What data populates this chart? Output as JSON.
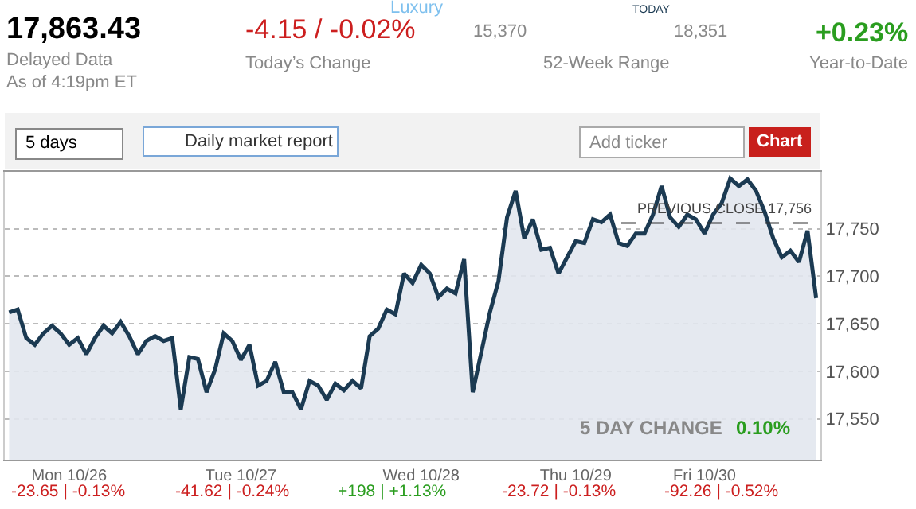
{
  "chart_data": {
    "type": "area",
    "series": [
      {
        "color": "#1b3a52",
        "values": [
          17662,
          17665,
          17635,
          17628,
          17640,
          17648,
          17640,
          17628,
          17635,
          17618,
          17635,
          17648,
          17640,
          17652,
          17637,
          17618,
          17632,
          17637,
          17632,
          17635,
          17560,
          17615,
          17613,
          17578,
          17602,
          17640,
          17632,
          17612,
          17628,
          17585,
          17590,
          17610,
          17578,
          17578,
          17560,
          17590,
          17585,
          17570,
          17587,
          17580,
          17590,
          17582,
          17637,
          17645,
          17665,
          17660,
          17703,
          17693,
          17712,
          17703,
          17678,
          17687,
          17682,
          17718,
          17578,
          17620,
          17662,
          17695,
          17762,
          17790,
          17740,
          17760,
          17728,
          17730,
          17703,
          17720,
          17737,
          17735,
          17760,
          17757,
          17765,
          17735,
          17732,
          17745,
          17745,
          17765,
          17795,
          17762,
          17752,
          17765,
          17760,
          17745,
          17765,
          17777,
          17803,
          17795,
          17802,
          17790,
          17768,
          17740,
          17720,
          17727,
          17715,
          17748,
          17677
        ]
      }
    ],
    "categories": [
      null,
      null,
      null,
      null,
      null,
      null,
      null,
      "Mon 10/26",
      null,
      null,
      null,
      null,
      null,
      null,
      null,
      null,
      null,
      null,
      null,
      null,
      null,
      null,
      null,
      null,
      null,
      null,
      null,
      "Tue 10/27",
      null,
      null,
      null,
      null,
      null,
      null,
      null,
      null,
      null,
      null,
      null,
      null,
      null,
      null,
      null,
      null,
      null,
      null,
      null,
      null,
      "Wed 10/28",
      null,
      null,
      null,
      null,
      null,
      null,
      null,
      null,
      null,
      null,
      null,
      null,
      null,
      null,
      null,
      null,
      null,
      "Thu 10/29",
      null,
      null,
      null,
      null,
      null,
      null,
      null,
      null,
      null,
      null,
      null,
      null,
      null,
      null,
      "Fri 10/30",
      null,
      null,
      null,
      null,
      null,
      null,
      null,
      null,
      null,
      null,
      null,
      null,
      null
    ],
    "ylim": [
      17507,
      17810
    ],
    "yticks": [
      {
        "value": 17550,
        "label": "17,550"
      },
      {
        "value": 17600,
        "label": "17,600"
      },
      {
        "value": 17650,
        "label": "17,650"
      },
      {
        "value": 17700,
        "label": "17,700"
      },
      {
        "value": 17750,
        "label": "17,750"
      }
    ],
    "grid": "y",
    "legend": false,
    "ref_lines": [
      {
        "axis": "y",
        "value": 17756,
        "label": "PREVIOUS CLOSE 17,756",
        "color": "#333333",
        "line_style": "dashed"
      }
    ],
    "annotations": [
      "17,863.43",
      "Delayed Data",
      "As of 4:19pm ET",
      "Luxury",
      "-4.15 / -0.02%",
      "Today’s Change",
      "15,370",
      "TODAY",
      "18,351",
      "52-Week Range",
      "+0.23%",
      "Year-to-Date",
      "5 days",
      "Daily market report",
      "Add ticker",
      "Chart",
      "5 DAY CHANGE",
      "0.10%",
      "-23.65 | -0.13%",
      "-41.62 | -0.24%",
      "+198 | +1.13%",
      "-23.72 | -0.13%",
      "-92.26 | -0.52%"
    ]
  }
}
